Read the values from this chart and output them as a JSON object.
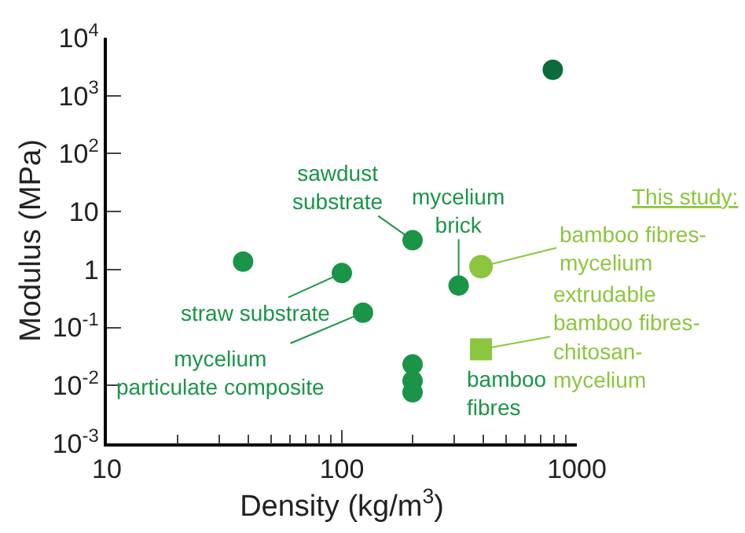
{
  "chart_data": {
    "type": "scatter",
    "xlabel": "Density (kg/m$^{3}$)",
    "ylabel": "Modulus (MPa)",
    "series": [
      {
        "colors": [
          "#0b6b3a",
          "#1a9548",
          "#1a9548",
          "#1a9548",
          "#1a9548",
          "#1a9548",
          "#1a9548",
          "#1a9548",
          "#1a9548"
        ],
        "color": "#1a9548",
        "marker": "circle",
        "x": [
          790,
          38,
          100,
          123,
          200,
          314,
          200,
          200,
          200
        ],
        "values": [
          2800,
          1.37,
          0.87,
          0.18,
          3.2,
          0.53,
          0.023,
          0.012,
          0.0076
        ]
      },
      {
        "color": "#8cc63f",
        "marker": "circle",
        "x": [
          391
        ],
        "values": [
          1.12
        ]
      },
      {
        "color": "#8cc63f",
        "marker": "square",
        "x": [
          391
        ],
        "values": [
          0.042
        ]
      }
    ],
    "annotations": [
      {
        "text": "sawdust\nsubstrate",
        "x": 200,
        "y": 3.2
      },
      {
        "text": "mycelium\nbrick",
        "x": 314,
        "y": 0.53
      },
      {
        "text": "straw substrate",
        "x": 100,
        "y": 0.87
      },
      {
        "text": "mycelium\nparticulate composite",
        "x": 123,
        "y": 0.18
      },
      {
        "text": "bamboo\nfibres",
        "x": 200,
        "y": 0.012
      },
      "This study:",
      {
        "text": "bamboo fibres-\nmycelium",
        "x": 391,
        "y": 1.12
      },
      {
        "text": "extrudable\nbamboo fibres-\nchitosan-\nmycelium",
        "x": 391,
        "y": 0.042
      }
    ],
    "log": "xy",
    "xlim": [
      10,
      1000
    ],
    "xticks": [
      10,
      100,
      1000
    ],
    "ylim": [
      0.001,
      10000
    ],
    "yticks": [
      {
        "value": 0.001,
        "label": "10$^{-3}$"
      },
      {
        "value": 0.01,
        "label": "10$^{-2}$"
      },
      {
        "value": 0.1,
        "label": "10$^{-1}$"
      },
      1,
      10,
      {
        "value": 100,
        "label": "10$^{2}$"
      },
      {
        "value": 1000,
        "label": "10$^{3}$"
      },
      {
        "value": 10000,
        "label": "10$^{4}$"
      }
    ]
  }
}
